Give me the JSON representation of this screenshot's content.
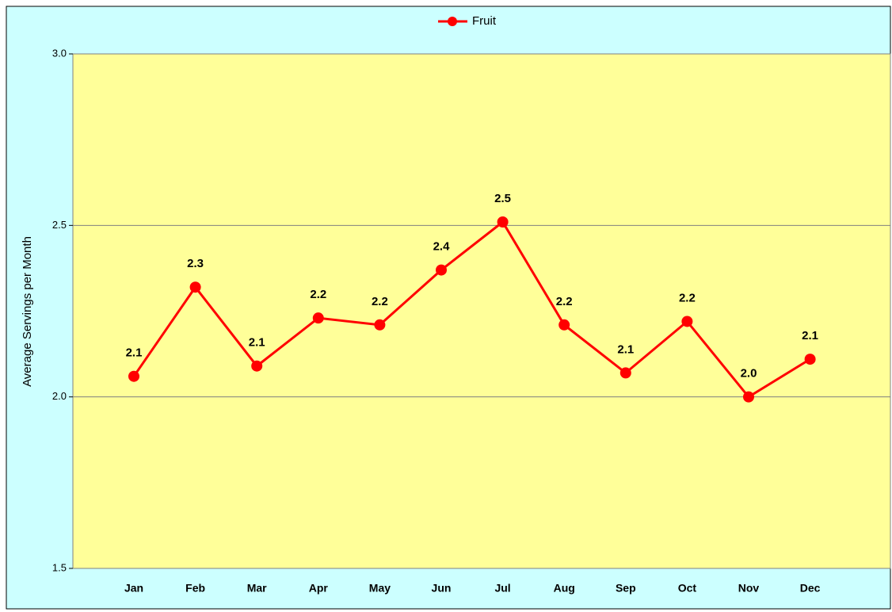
{
  "chart_data": {
    "type": "line",
    "y_label": "Average Servings per Month",
    "categories": [
      "Jan",
      "Feb",
      "Mar",
      "Apr",
      "May",
      "Jun",
      "Jul",
      "Aug",
      "Sep",
      "Oct",
      "Nov",
      "Dec"
    ],
    "series": [
      {
        "name": "Fruit",
        "color": "#ff0000",
        "values": [
          2.06,
          2.32,
          2.09,
          2.23,
          2.21,
          2.37,
          2.51,
          2.21,
          2.07,
          2.22,
          2.0,
          2.11
        ],
        "value_labels": [
          "2.1",
          "2.3",
          "2.1",
          "2.2",
          "2.2",
          "2.4",
          "2.5",
          "2.2",
          "2.1",
          "2.2",
          "2.0",
          "2.1"
        ]
      }
    ],
    "ylim": [
      1.5,
      3.0
    ],
    "yticks": [
      1.5,
      {
        "value": 2.0,
        "label": "2.0"
      },
      2.5,
      {
        "value": 3.0,
        "label": "3.0"
      }
    ],
    "grid": true,
    "legend": "top"
  }
}
